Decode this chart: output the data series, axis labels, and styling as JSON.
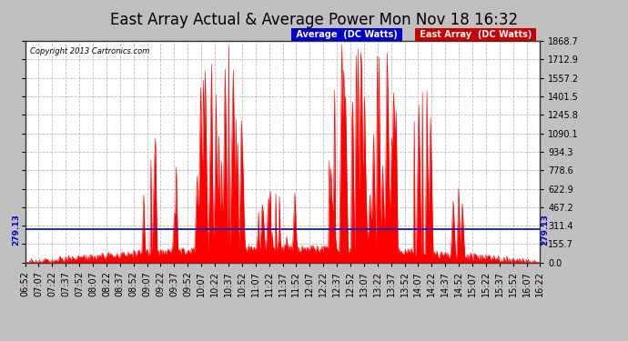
{
  "title": "East Array Actual & Average Power Mon Nov 18 16:32",
  "copyright": "Copyright 2013 Cartronics.com",
  "bg_color": "#c0c0c0",
  "plot_bg_color": "#ffffff",
  "grid_color": "#aaaaaa",
  "text_color": "#000000",
  "title_color": "#000000",
  "avg_line_value": 279.13,
  "avg_line_color": "#0000cc",
  "fill_color": "#ff0000",
  "line_color": "#ff0000",
  "yticks": [
    0.0,
    155.7,
    311.4,
    467.2,
    622.9,
    778.6,
    934.3,
    1090.1,
    1245.8,
    1401.5,
    1557.2,
    1712.9,
    1868.7
  ],
  "ymax": 1868.7,
  "ymin": 0.0,
  "xtick_labels": [
    "06:52",
    "07:07",
    "07:22",
    "07:37",
    "07:52",
    "08:07",
    "08:22",
    "08:37",
    "08:52",
    "09:07",
    "09:22",
    "09:37",
    "09:52",
    "10:07",
    "10:22",
    "10:37",
    "10:52",
    "11:07",
    "11:22",
    "11:37",
    "11:52",
    "12:07",
    "12:22",
    "12:37",
    "12:52",
    "13:07",
    "13:22",
    "13:37",
    "13:52",
    "14:07",
    "14:22",
    "14:37",
    "14:52",
    "15:07",
    "15:22",
    "15:37",
    "15:52",
    "16:07",
    "16:22"
  ],
  "legend_avg_color": "#0000cc",
  "legend_avg_text": "Average  (DC Watts)",
  "legend_east_color": "#cc0000",
  "legend_east_text": "East Array  (DC Watts)",
  "avg_label": "279.13",
  "title_fontsize": 12,
  "tick_fontsize": 7,
  "legend_fontsize": 7,
  "copyright_color": "#000000"
}
